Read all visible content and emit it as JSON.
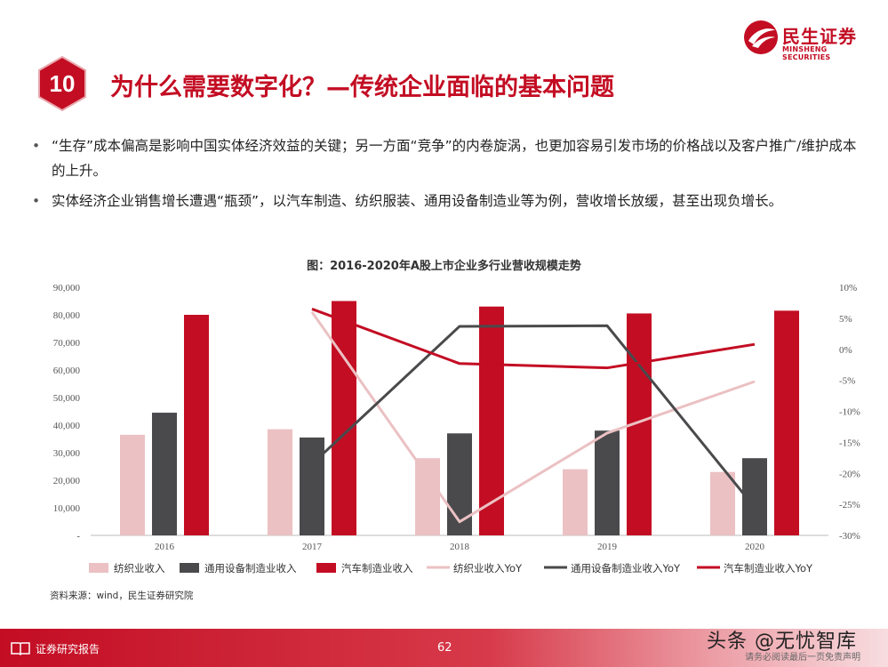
{
  "brand": {
    "name_cn": "民生证券",
    "name_en": "MINSHENG SECURITIES",
    "color": "#c30d23"
  },
  "header": {
    "number": "10",
    "title": "为什么需要数字化？—传统企业面临的基本问题"
  },
  "bullets": [
    "“生存”成本偏高是影响中国实体经济效益的关键；另一方面“竞争”的内卷旋涡，也更加容易引发市场的价格战以及客户推广/维护成本的上升。",
    "实体经济企业销售增长遭遇“瓶颈”，以汽车制造、纺织服装、通用设备制造业等为例，营收增长放缓，甚至出现负增长。"
  ],
  "chart_caption": "图：2016-2020年A股上市企业多行业营收规模走势",
  "chart_data": {
    "type": "bar",
    "title": "图：2016-2020年A股上市企业多行业营收规模走势",
    "categories": [
      "2016",
      "2017",
      "2018",
      "2019",
      "2020"
    ],
    "ylim": [
      0,
      90000
    ],
    "y_ticks": [
      0,
      10000,
      20000,
      30000,
      40000,
      50000,
      60000,
      70000,
      80000,
      90000
    ],
    "y_tick_labels": [
      "-",
      "10,000",
      "20,000",
      "30,000",
      "40,000",
      "50,000",
      "60,000",
      "70,000",
      "80,000",
      "90,000"
    ],
    "y2lim": [
      -30,
      10
    ],
    "y2_ticks": [
      10,
      5,
      0,
      -5,
      -10,
      -15,
      -20,
      -25,
      -30
    ],
    "y2_tick_labels": [
      "10%",
      "5%",
      "0%",
      "-5%",
      "-10%",
      "-15%",
      "-20%",
      "-25%",
      "-30%"
    ],
    "bar_series": [
      {
        "name": "纺织业收入",
        "color": "#ebc1c3",
        "values": [
          36500,
          38500,
          28000,
          24000,
          23000
        ]
      },
      {
        "name": "通用设备制造业收入",
        "color": "#4a4a4c",
        "values": [
          44500,
          35500,
          37000,
          38000,
          28000
        ]
      },
      {
        "name": "汽车制造业收入",
        "color": "#c30d23",
        "values": [
          80000,
          85000,
          83000,
          80500,
          81500
        ]
      }
    ],
    "line_series": [
      {
        "name": "纺织业收入YoY",
        "color": "#ebc1c3",
        "values": [
          null,
          6.0,
          -27.8,
          -13.5,
          -5.2
        ]
      },
      {
        "name": "通用设备制造业收入YoY",
        "color": "#4a4a4c",
        "values": [
          null,
          -18.5,
          3.7,
          3.8,
          -25.5
        ]
      },
      {
        "name": "汽车制造业收入YoY",
        "color": "#c30d23",
        "values": [
          null,
          6.5,
          -2.3,
          -3.0,
          0.8
        ]
      }
    ],
    "legend": "bottom"
  },
  "source": "资料来源：wind，民生证券研究院",
  "footer": {
    "label": "证券研究报告",
    "page": "62",
    "notice": "请务必阅读最后一页免责声明"
  },
  "watermark": "头条 @无忧智库"
}
